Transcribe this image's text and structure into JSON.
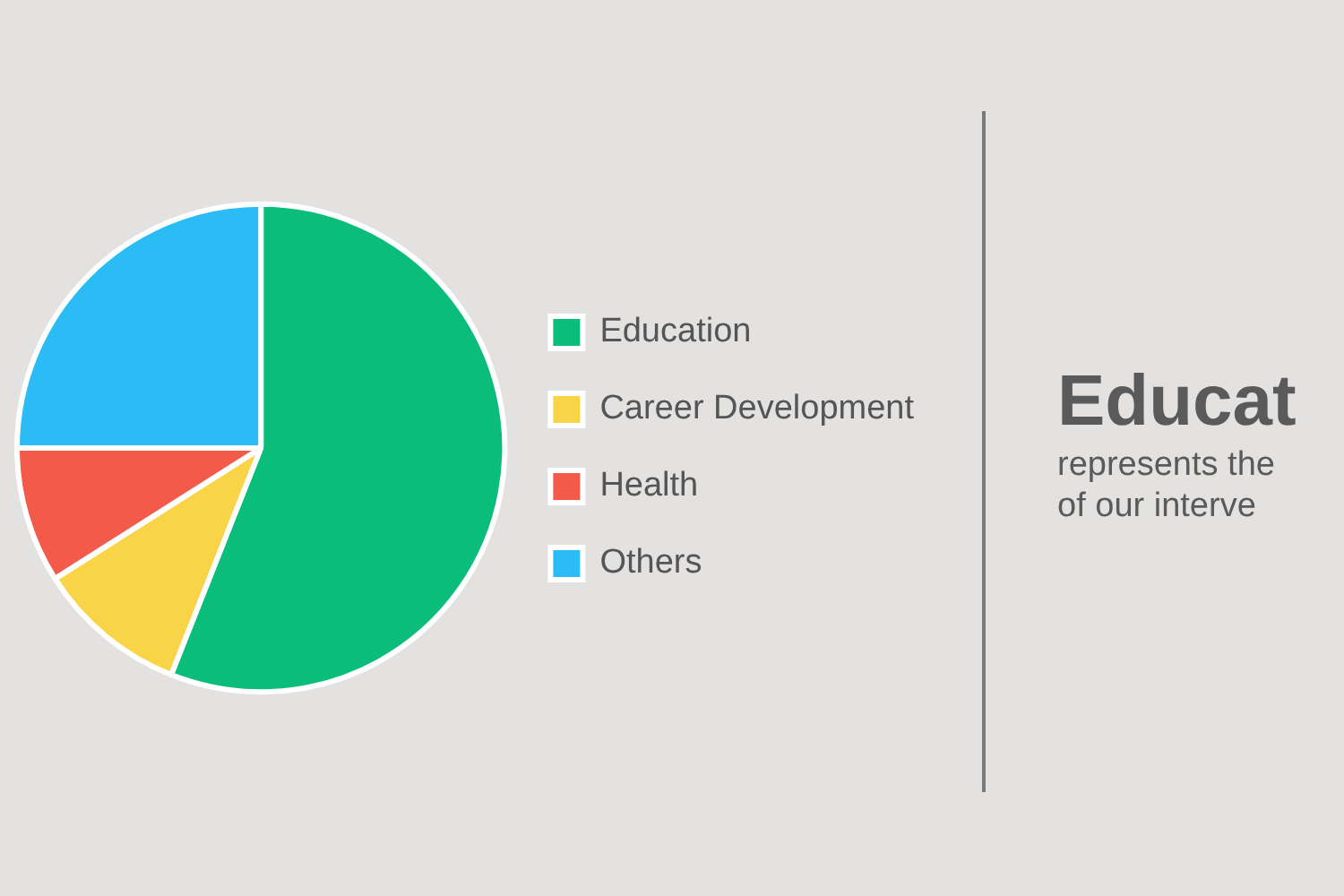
{
  "chart_data": {
    "type": "pie",
    "categories": [
      "Education",
      "Career Development",
      "Health",
      "Others"
    ],
    "values": [
      56,
      10,
      9,
      25
    ],
    "colors": [
      "#0bbd7b",
      "#f9d447",
      "#f45a4a",
      "#2bbcf5"
    ],
    "legend": "right",
    "annotations": [
      "Educat",
      "represents the",
      "of our interve"
    ]
  }
}
